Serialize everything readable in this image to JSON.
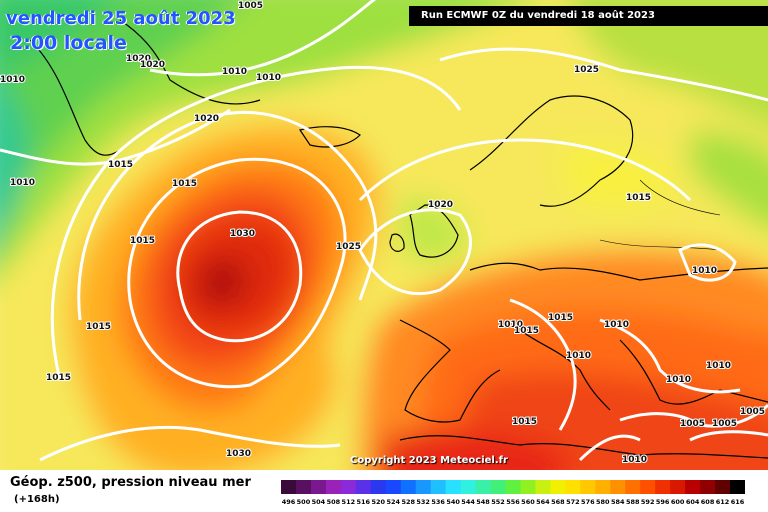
{
  "header": {
    "date": "vendredi 25 août 2023",
    "local_time": "2:00 locale"
  },
  "run_info": "Run ECMWF 0Z du vendredi 18 août 2023",
  "copyright": "Copyright 2023 Meteociel.fr",
  "footer": {
    "title": "Géop. z500, pression niveau mer",
    "lead_time": "(+168h)"
  },
  "map": {
    "region": "North Atlantic and Europe",
    "isobar_labels": [
      "1005",
      "1020",
      "1020",
      "1010",
      "1010",
      "1010",
      "1025",
      "1020",
      "1015",
      "1015",
      "1010",
      "1030",
      "1015",
      "1025",
      "1020",
      "1015",
      "1010",
      "1015",
      "1010",
      "1015",
      "1010",
      "1015",
      "1010",
      "1010",
      "1015",
      "1010",
      "1015",
      "1005",
      "1005",
      "1005",
      "1010"
    ],
    "high_center": "1030",
    "isobar_color": "#ffffff",
    "coastline_color": "#000000"
  },
  "colorbar": {
    "labels": [
      "496",
      "500",
      "504",
      "508",
      "512",
      "516",
      "520",
      "524",
      "528",
      "532",
      "536",
      "540",
      "544",
      "548",
      "552",
      "556",
      "560",
      "564",
      "568",
      "572",
      "576",
      "580",
      "584",
      "588",
      "592",
      "596",
      "600",
      "604",
      "608",
      "612",
      "616"
    ],
    "colors": [
      "#3a0a3a",
      "#5a1060",
      "#7a1890",
      "#9a22b8",
      "#8a2ad8",
      "#5a30e8",
      "#2a38f0",
      "#1848ff",
      "#1070ff",
      "#1898ff",
      "#20c0ff",
      "#28e0ff",
      "#30f0e0",
      "#38f0a8",
      "#40f078",
      "#60f040",
      "#90f020",
      "#c8f010",
      "#f0f000",
      "#ffe000",
      "#ffc800",
      "#ffb000",
      "#ff9000",
      "#ff7000",
      "#ff5000",
      "#f03000",
      "#d81800",
      "#b80000",
      "#900000",
      "#600000",
      "#000000"
    ]
  }
}
